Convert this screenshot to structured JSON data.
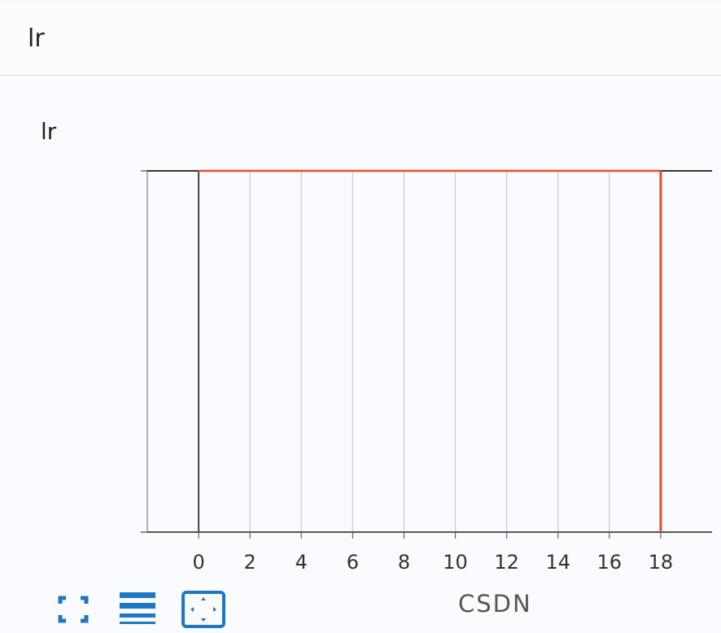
{
  "header": {
    "title": "lr"
  },
  "chart_data": {
    "type": "line",
    "title": "lr",
    "xlabel": "",
    "ylabel": "",
    "xlim": [
      -2,
      20
    ],
    "xticks": [
      0,
      2,
      4,
      6,
      8,
      10,
      12,
      14,
      16,
      18
    ],
    "grid": "vertical",
    "series": [
      {
        "color": "#e0502e",
        "x": [
          0,
          2,
          4,
          6,
          8,
          10,
          12,
          14,
          16,
          18
        ],
        "y": [
          1,
          1,
          1,
          1,
          1,
          1,
          1,
          1,
          1,
          1
        ]
      }
    ]
  },
  "toolbar": {
    "icons": [
      "fullscreen-icon",
      "toggle-y-log-icon",
      "fit-domain-icon"
    ],
    "accent": "#1f77c4"
  },
  "watermark": "CSDN"
}
